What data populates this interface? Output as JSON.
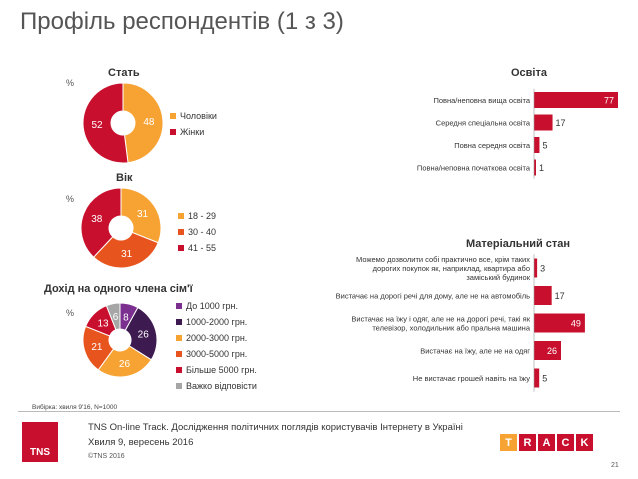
{
  "page_title": "Профіль респондентів (1 з 3)",
  "colors": {
    "orange": "#f7a334",
    "red": "#c8102e",
    "dark_orange": "#e8541e",
    "purple": "#7b2f8e",
    "dark_purple": "#3d1a4f",
    "gray": "#a6a6a6",
    "label_dark": "#333333"
  },
  "chart_data": [
    {
      "id": "gender",
      "type": "pie",
      "title": "Стать",
      "unit_label": "%",
      "categories": [
        "Чоловіки",
        "Жінки"
      ],
      "values": [
        48,
        52
      ],
      "colors": [
        "#f7a334",
        "#c8102e"
      ]
    },
    {
      "id": "age",
      "type": "pie",
      "title": "Вік",
      "unit_label": "%",
      "categories": [
        "18 - 29",
        "30 - 40",
        "41 - 55"
      ],
      "values": [
        31,
        31,
        38
      ],
      "colors": [
        "#f7a334",
        "#e8541e",
        "#c8102e"
      ]
    },
    {
      "id": "income",
      "type": "pie",
      "title": "Дохід на одного члена сім'ї",
      "unit_label": "%",
      "categories": [
        "До 1000 грн.",
        "1000-2000 грн.",
        "2000-3000 грн.",
        "3000-5000 грн.",
        "Більше 5000 грн.",
        "Важко відповісти"
      ],
      "values": [
        8,
        26,
        26,
        21,
        13,
        6
      ],
      "colors": [
        "#7b2f8e",
        "#3d1a4f",
        "#f7a334",
        "#e8541e",
        "#c8102e",
        "#a6a6a6"
      ]
    },
    {
      "id": "education",
      "type": "bar",
      "orientation": "horizontal",
      "title": "Освіта",
      "categories": [
        "Повна/неповна вища освіта",
        "Середня спеціальна освіта",
        "Повна середня освіта",
        "Повна/неповна початкова освіта"
      ],
      "values": [
        77,
        17,
        5,
        1
      ],
      "xlim": [
        0,
        77
      ],
      "color": "#c8102e"
    },
    {
      "id": "material",
      "type": "bar",
      "orientation": "horizontal",
      "title": "Матеріальний стан",
      "categories": [
        "Можемо дозволити собі практично все, крім таких дорогих покупок як, наприклад, квартира або заміський будинок",
        "Вистачає на дорогі речі для дому, але не на автомобіль",
        "Вистачає на їжу і одяг, але не на дорогі речі, такі як телевізор, холодильник або пральна машина",
        "Вистачає на їжу, але не на одяг",
        "Не вистачає грошей навіть на їжу"
      ],
      "label_lines": [
        [
          "Можемо дозволити собі практично все, крім таких",
          "дорогих покупок як, наприклад, квартира або",
          "заміський будинок"
        ],
        [
          "Вистачає на дорогі речі для дому, але не на автомобіль"
        ],
        [
          "Вистачає на їжу і одяг, але не на дорогі речі, такі як",
          "телевізор, холодильник або пральна машина"
        ],
        [
          "Вистачає на їжу, але не на одяг"
        ],
        [
          "Не вистачає грошей навіть на їжу"
        ]
      ],
      "values": [
        3,
        17,
        49,
        26,
        5
      ],
      "xlim": [
        0,
        77
      ],
      "color": "#c8102e"
    }
  ],
  "footer": {
    "sample_note": "Вибірка: хвиля 9'16, N=1000",
    "line1": "TNS On-line Track. Дослідження політичних поглядів користувачів Інтернету в Україні",
    "line2": "Хвиля 9, вересень 2016",
    "copyright": "©TNS 2016",
    "tns_logo": "TNS",
    "track_letters": [
      "T",
      "R",
      "A",
      "C",
      "K"
    ],
    "track_colors": [
      "#f7a334",
      "#c8102e",
      "#c8102e",
      "#c8102e",
      "#c8102e"
    ],
    "page_number": "21"
  }
}
